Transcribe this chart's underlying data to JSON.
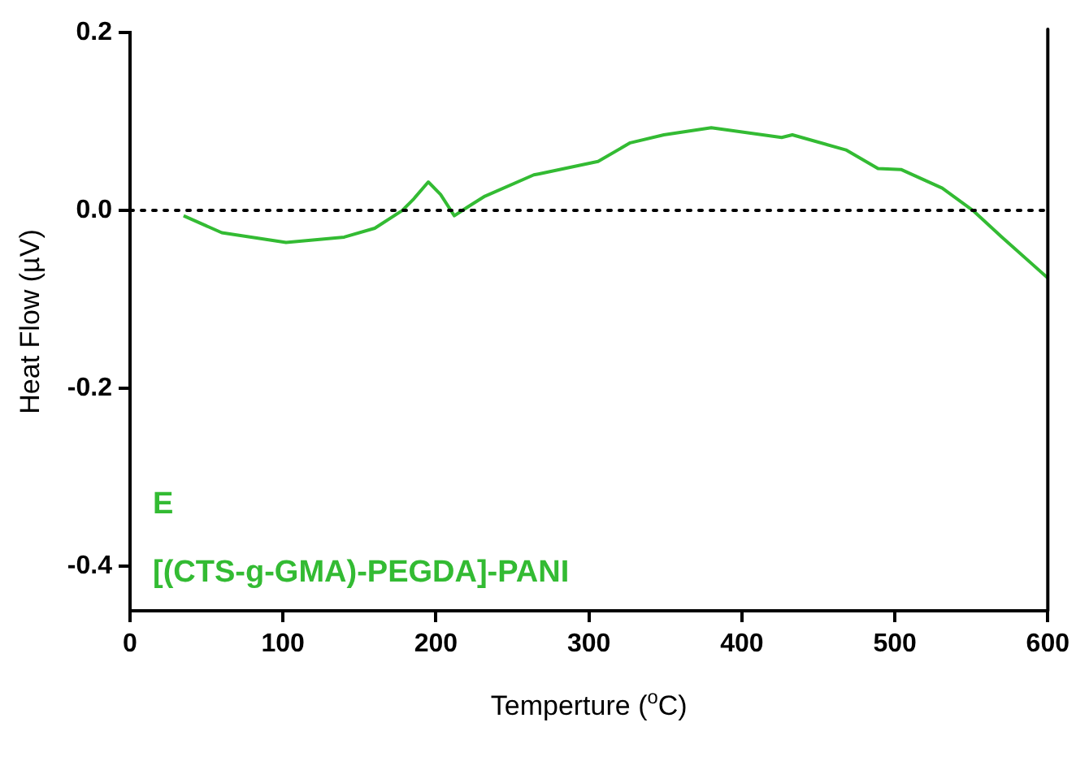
{
  "chart_data": {
    "type": "line",
    "xlabel": "Temperture ($^{o}$C)",
    "ylabel": "Heat Flow (µV)",
    "xlim": [
      0,
      600
    ],
    "xticks": [
      0,
      100,
      200,
      300,
      400,
      500,
      600
    ],
    "ylim": [
      -0.45,
      0.2
    ],
    "yticks": [
      {
        "value": 0.2,
        "label": "0.2"
      },
      {
        "value": 0,
        "label": "0.0"
      },
      {
        "value": -0.2,
        "label": "-0.2"
      },
      {
        "value": -0.4,
        "label": "-0.4"
      }
    ],
    "grid": false,
    "legend": false,
    "marker": "none",
    "line_style": "solid",
    "ref_lines": [
      {
        "axis": "y",
        "value": 0,
        "color": "#000000",
        "line_style": "dotted"
      }
    ],
    "annotations": [
      "E",
      "[(CTS-g-GMA)-PEGDA]-PANI"
    ],
    "series": [
      {
        "color": "#33bb33",
        "x": [
          35,
          60,
          102,
          140,
          160,
          178,
          185,
          195,
          203,
          212,
          220,
          232,
          264,
          267,
          306,
          327,
          349,
          380,
          426,
          433,
          468,
          489,
          504,
          531,
          551,
          570,
          600
        ],
        "values": [
          -0.006,
          -0.025,
          -0.036,
          -0.03,
          -0.02,
          0,
          0.012,
          0.032,
          0.018,
          -0.006,
          0.003,
          0.016,
          0.04,
          0.041,
          0.055,
          0.076,
          0.085,
          0.093,
          0.082,
          0.085,
          0.068,
          0.047,
          0.046,
          0.025,
          0,
          -0.03,
          -0.076
        ]
      }
    ]
  }
}
